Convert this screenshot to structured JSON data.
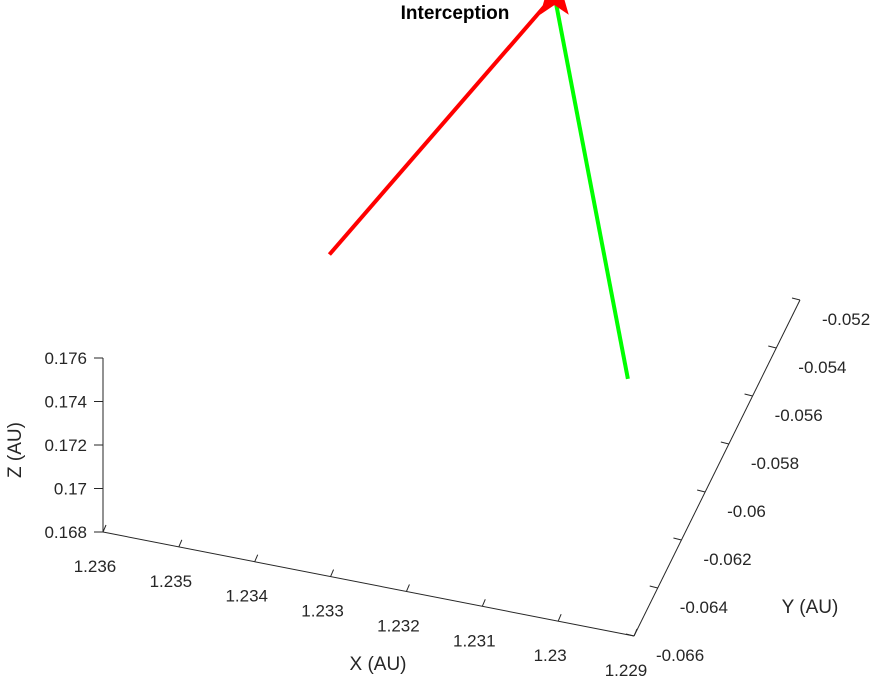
{
  "chart_data": {
    "type": "line",
    "title": "Interception",
    "xlabel": "X (AU)",
    "ylabel": "Y (AU)",
    "zlabel": "Z (AU)",
    "x_ticks": [
      "1.236",
      "1.235",
      "1.234",
      "1.233",
      "1.232",
      "1.231",
      "1.23",
      "1.229"
    ],
    "y_ticks": [
      "-0.066",
      "-0.064",
      "-0.062",
      "-0.06",
      "-0.058",
      "-0.056",
      "-0.054",
      "-0.052"
    ],
    "z_ticks": [
      "0.168",
      "0.17",
      "0.172",
      "0.174",
      "0.176"
    ],
    "xlim": [
      1.229,
      1.236
    ],
    "ylim": [
      -0.066,
      -0.052
    ],
    "zlim": [
      0.168,
      0.176
    ],
    "grid": false,
    "series": [
      {
        "color": "#ff0000",
        "x": [
          1.2345,
          1.2318
        ],
        "y": [
          -0.0565,
          -0.0548
        ],
        "z": [
          0.1713,
          0.1832
        ]
      },
      {
        "color": "#00ff00",
        "x": [
          1.2298,
          1.2318
        ],
        "y": [
          -0.0614,
          -0.0548
        ],
        "z": [
          0.1742,
          0.1832
        ]
      }
    ],
    "markers": [
      {
        "shape": "star",
        "color": "#ff0000",
        "x": 1.2318,
        "y": -0.0548,
        "z": 0.1832
      }
    ]
  }
}
